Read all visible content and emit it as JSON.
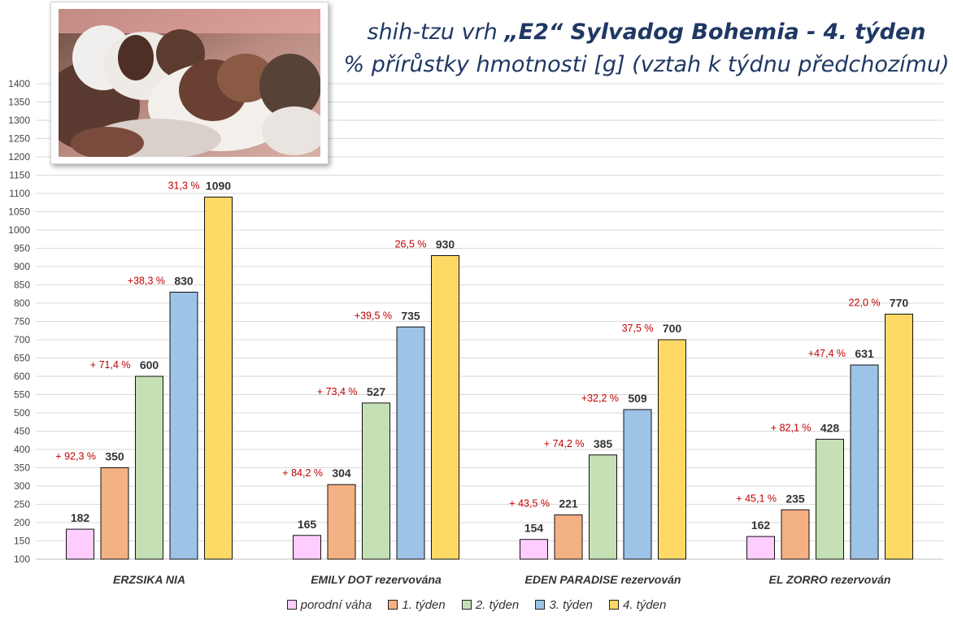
{
  "title": {
    "prefix": "shih-tzu vrh ",
    "bold": "„E2“ Sylvadog Bohemia - 4. týden",
    "subtitle": "% přírůstky hmotnosti [g] (vztah k týdnu předchozímu)"
  },
  "photo": {
    "alt": "shih-tzu puppies photo"
  },
  "colors": {
    "porodni": "#ffccff",
    "t1": "#f4b183",
    "t2": "#c5e0b4",
    "t3": "#9dc3e6",
    "t4": "#ffd966",
    "pct_text": "#c00000",
    "value_text": "#333333",
    "grid": "#d9d9d9"
  },
  "chart_data": {
    "type": "bar",
    "ylim": [
      100,
      1400
    ],
    "ystep": 50,
    "categories": [
      "ERZSIKA NIA",
      "EMILY DOT rezervována",
      "EDEN PARADISE rezervován",
      "EL ZORRO  rezervován"
    ],
    "series": [
      {
        "name": "porodní váha",
        "key": "porodni",
        "values": [
          182,
          165,
          154,
          162
        ],
        "pct": [
          "",
          "",
          "",
          ""
        ]
      },
      {
        "name": "1. týden",
        "key": "t1",
        "values": [
          350,
          304,
          221,
          235
        ],
        "pct": [
          "+ 92,3 %",
          "+ 84,2 %",
          "+ 43,5 %",
          "+ 45,1 %"
        ]
      },
      {
        "name": "2. týden",
        "key": "t2",
        "values": [
          600,
          527,
          385,
          428
        ],
        "pct": [
          "+ 71,4 %",
          "+ 73,4 %",
          "+ 74,2 %",
          "+ 82,1 %"
        ]
      },
      {
        "name": "3. týden",
        "key": "t3",
        "values": [
          830,
          735,
          509,
          631
        ],
        "pct": [
          "+38,3 %",
          "+39,5 %",
          "+32,2 %",
          "+47,4 %"
        ]
      },
      {
        "name": "4. týden",
        "key": "t4",
        "values": [
          1090,
          930,
          700,
          770
        ],
        "pct": [
          "31,3 %",
          "26,5 %",
          "37,5 %",
          "22,0 %"
        ]
      }
    ]
  }
}
